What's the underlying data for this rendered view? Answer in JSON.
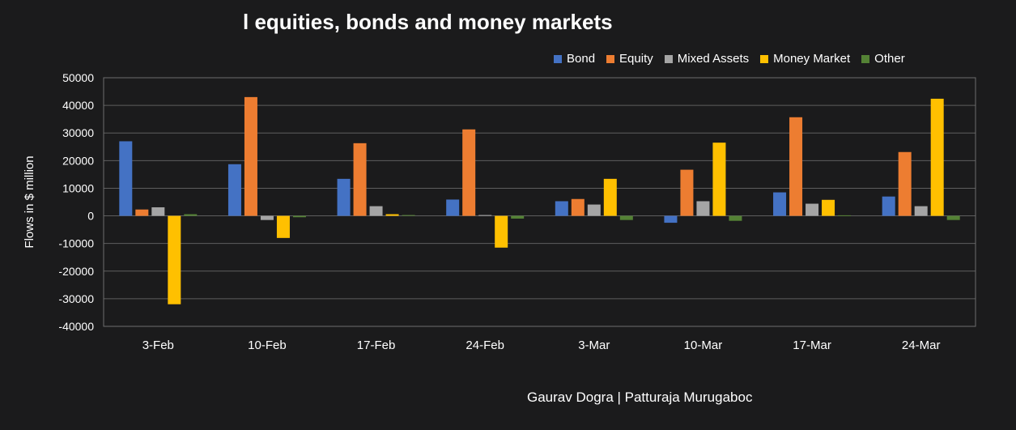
{
  "title": "l equities, bonds and money markets",
  "credit": "Gaurav Dogra | Patturaja Murugaboc",
  "chart_data": {
    "type": "bar",
    "title": "l equities, bonds and money markets",
    "xlabel": "",
    "ylabel": "Flows in $ million",
    "ylim": [
      -40000,
      50000
    ],
    "yticks": [
      50000,
      40000,
      30000,
      20000,
      10000,
      0,
      -10000,
      -20000,
      -30000,
      -40000
    ],
    "grid": true,
    "legend_position": "top-right",
    "categories": [
      "3-Feb",
      "10-Feb",
      "17-Feb",
      "24-Feb",
      "3-Mar",
      "10-Mar",
      "17-Mar",
      "24-Mar"
    ],
    "series": [
      {
        "name": "Bond",
        "color": "#4472c4",
        "values": [
          27000,
          18700,
          13400,
          5900,
          5300,
          -2500,
          8500,
          7000
        ]
      },
      {
        "name": "Equity",
        "color": "#ed7d31",
        "values": [
          2300,
          43000,
          26300,
          31300,
          6100,
          16700,
          35700,
          23100
        ]
      },
      {
        "name": "Mixed Assets",
        "color": "#a5a5a5",
        "values": [
          3100,
          -1500,
          3500,
          300,
          4100,
          5300,
          4400,
          3500
        ]
      },
      {
        "name": "Money Market",
        "color": "#ffc000",
        "values": [
          -32000,
          -8000,
          600,
          -11500,
          13400,
          26500,
          5800,
          42400
        ]
      },
      {
        "name": "Other",
        "color": "#548235",
        "values": [
          600,
          -500,
          300,
          -1000,
          -1500,
          -1800,
          200,
          -1500
        ]
      }
    ]
  }
}
